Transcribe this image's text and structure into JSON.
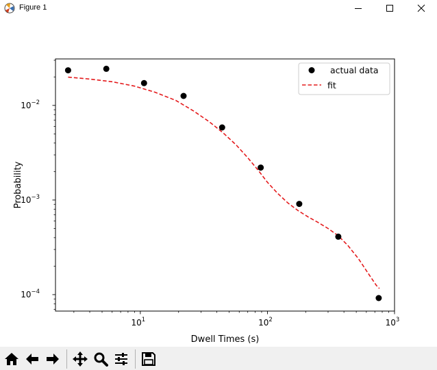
{
  "window": {
    "title": "Figure 1"
  },
  "toolbar": {
    "buttons": [
      "home-icon",
      "back-arrow-icon",
      "forward-arrow-icon",
      "pan-icon",
      "zoom-icon",
      "configure-subplots-icon",
      "save-icon"
    ]
  },
  "chart_data": {
    "type": "scatter",
    "title": "",
    "xlabel": "Dwell Times (s)",
    "ylabel": "Probability",
    "xscale": "log",
    "yscale": "log",
    "xlim": [
      2.15,
      1000
    ],
    "ylim": [
      6.7e-05,
      0.031
    ],
    "xticks": [
      {
        "value": 10,
        "base": "10",
        "exp": "1"
      },
      {
        "value": 100,
        "base": "10",
        "exp": "2"
      },
      {
        "value": 1000,
        "base": "10",
        "exp": "3"
      }
    ],
    "yticks": [
      {
        "value": 0.0001,
        "base": "10",
        "exp": "−4"
      },
      {
        "value": 0.001,
        "base": "10",
        "exp": "−3"
      },
      {
        "value": 0.01,
        "base": "10",
        "exp": "−2"
      }
    ],
    "legend_position": "upper-right",
    "series": [
      {
        "name": " actual data",
        "style": "markers",
        "color": "#000000",
        "x": [
          2.7,
          5.4,
          10.7,
          21.9,
          44.0,
          88.5,
          178,
          361,
          751
        ],
        "y": [
          0.0235,
          0.0244,
          0.0172,
          0.0126,
          0.00585,
          0.0022,
          0.00091,
          0.00041,
          9.2e-05
        ]
      },
      {
        "name": "fit",
        "style": "dashed-line",
        "color": "#e41a1c",
        "x": [
          2.7,
          4.0,
          6.0,
          9.0,
          13.0,
          19.0,
          26.0,
          35.0,
          45.0,
          57.0,
          70.0,
          85.0,
          100.0,
          120.0,
          145.0,
          175.0,
          210.0,
          250.0,
          300.0,
          360.0,
          430.0,
          520.0,
          620.0,
          720.0,
          760.0
        ],
        "y": [
          0.0199,
          0.019,
          0.0178,
          0.016,
          0.0138,
          0.0113,
          0.0088,
          0.0067,
          0.0051,
          0.0038,
          0.0028,
          0.00205,
          0.00154,
          0.00118,
          0.00093,
          0.00077,
          0.00066,
          0.00058,
          0.0005,
          0.00042,
          0.00033,
          0.00024,
          0.000168,
          0.000125,
          0.000116
        ]
      }
    ]
  }
}
